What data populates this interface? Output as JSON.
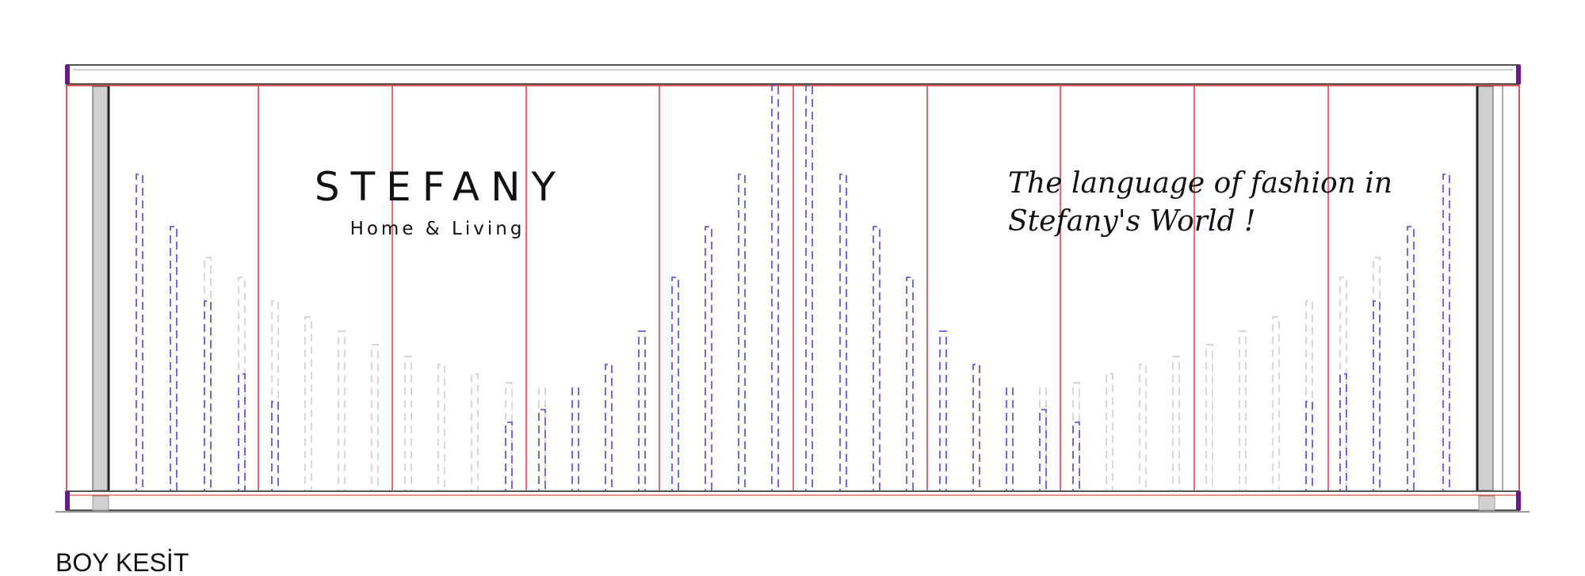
{
  "brand": {
    "name": "STEFANY",
    "tagline": "Home & Living"
  },
  "slogan": {
    "line1": "The language of fashion in",
    "line2": "Stefany's World !"
  },
  "caption": "BOY KESİT",
  "colors": {
    "frame": "#555555",
    "panel_lines": "#d42020",
    "pendant_blue": "#4a4ad4",
    "pendant_gray": "#c8c8c8",
    "corner_caps": "#6a1a8a",
    "column_fill": "#d0d0d0"
  }
}
